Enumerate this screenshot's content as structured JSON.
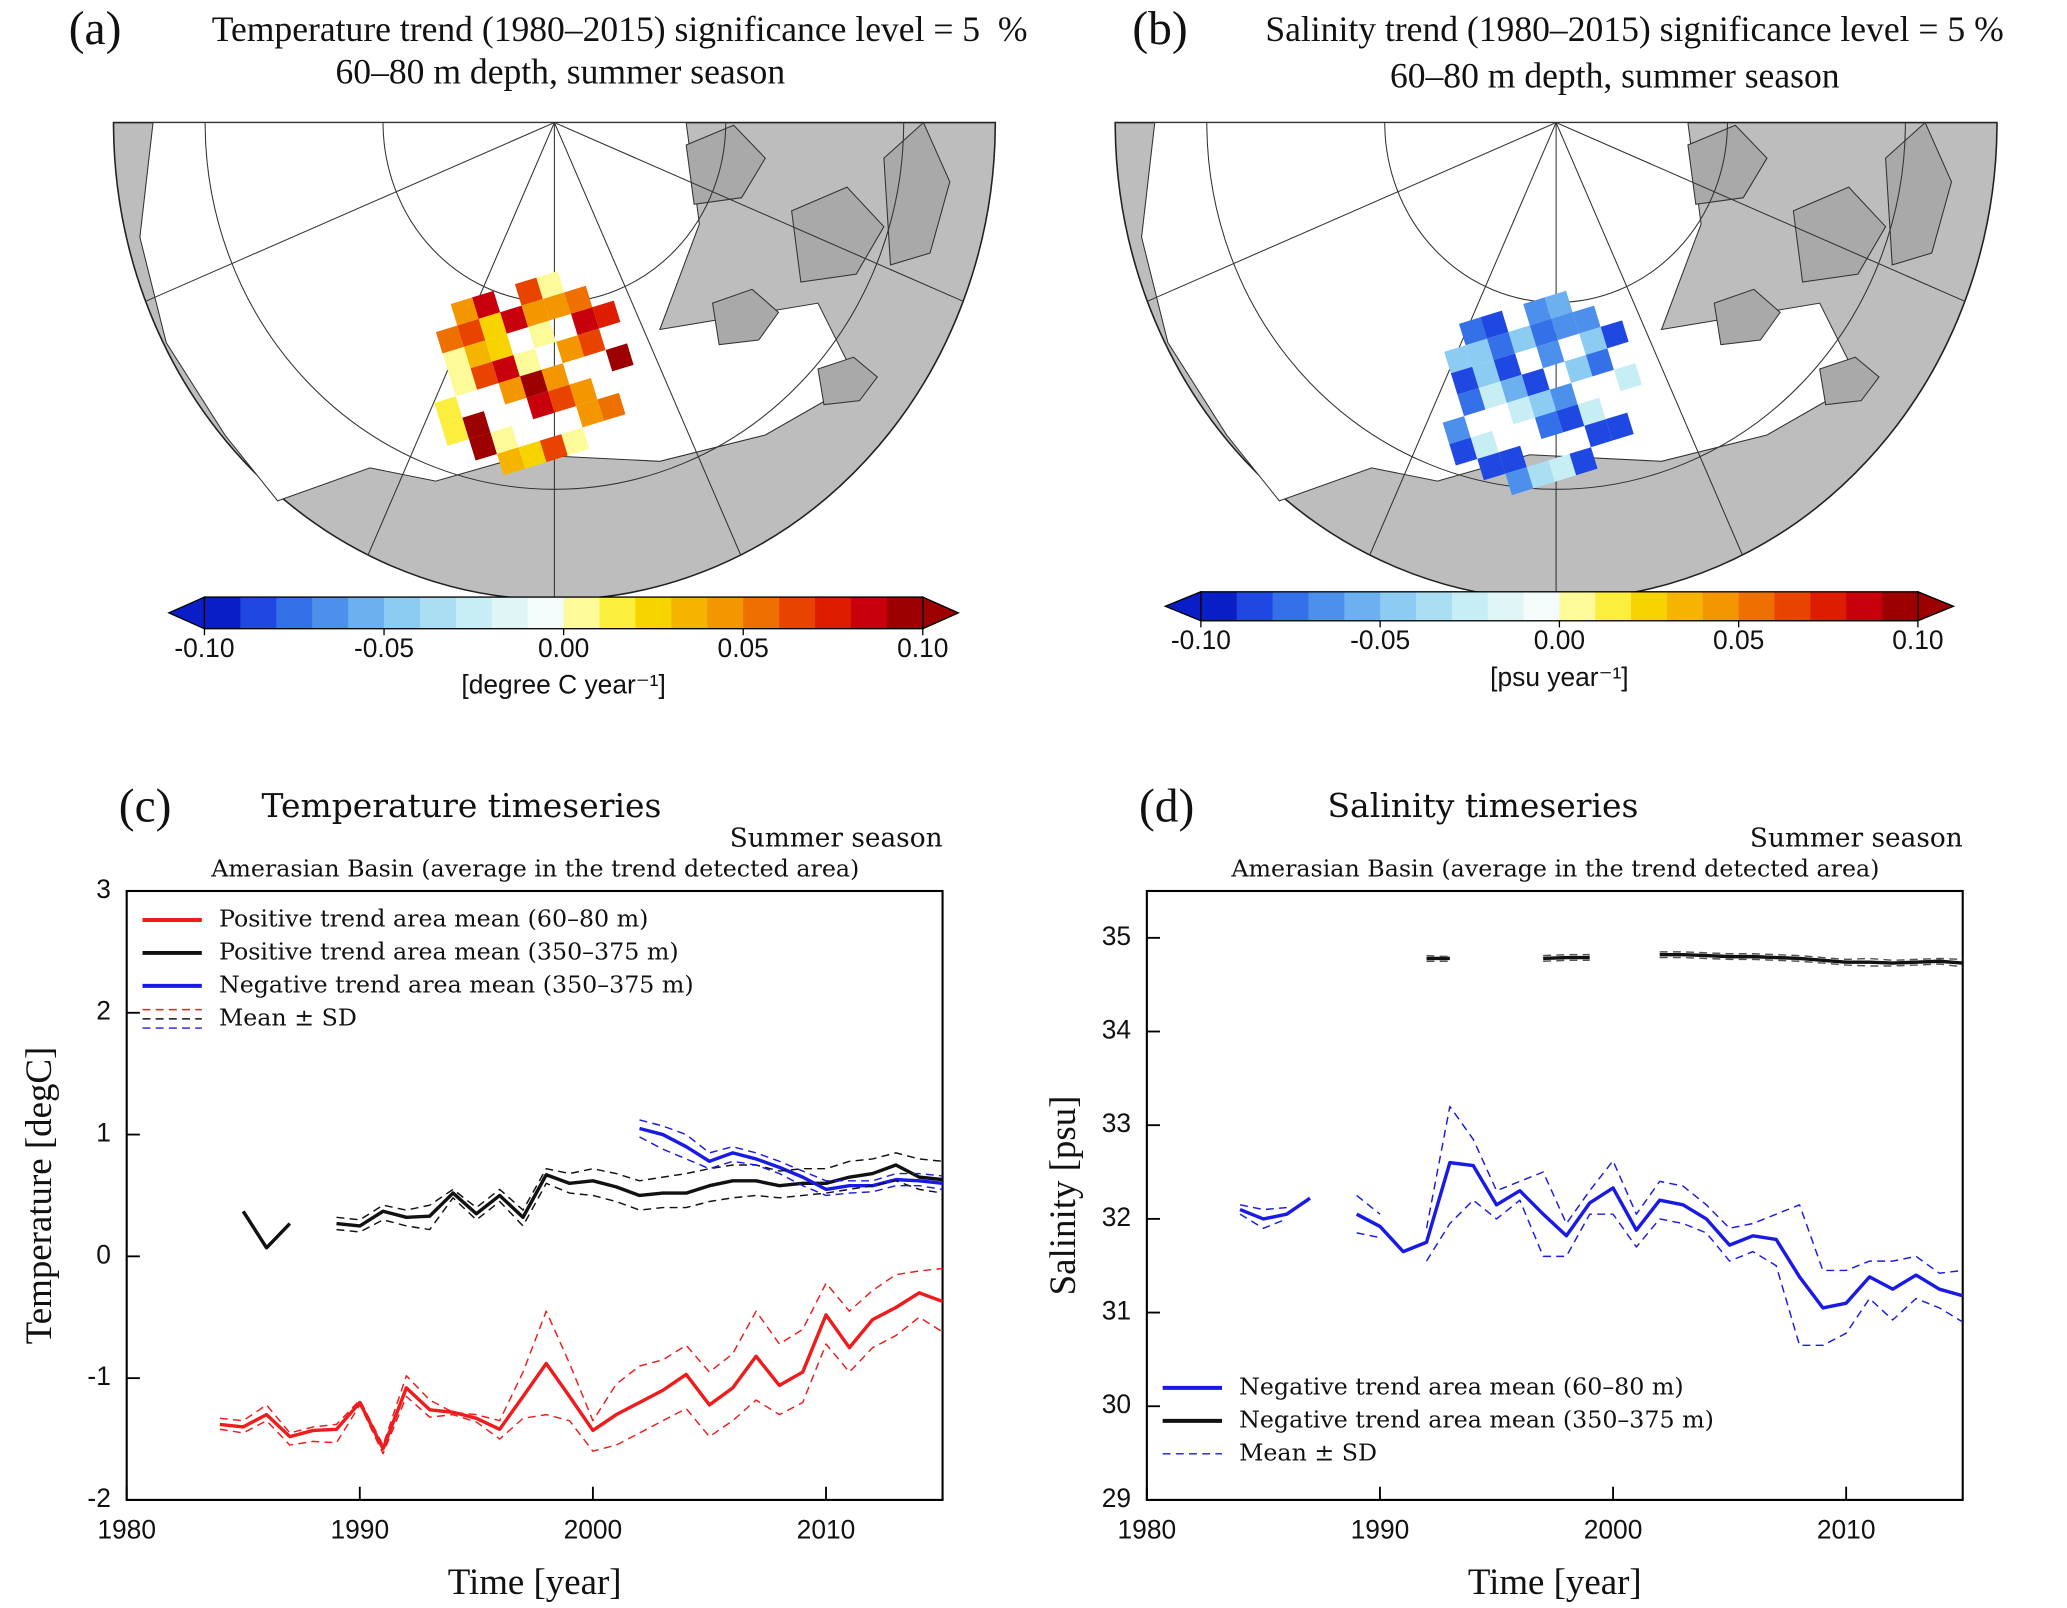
{
  "chart_data": [
    {
      "type": "map",
      "panel_label": "(a)",
      "title": "Temperature trend (1980–2015) significance level = 5  %",
      "subtitle": "60–80 m depth, summer season",
      "colorbar": {
        "colors": [
          "#0a1ec8",
          "#1f48e2",
          "#3470e8",
          "#4d90ec",
          "#6cb0f0",
          "#8ccbf2",
          "#a9def3",
          "#c7edf5",
          "#e0f6f6",
          "#f3fbfb",
          "#fdfa9a",
          "#fbee3c",
          "#f7d400",
          "#f5b400",
          "#f39600",
          "#ee7000",
          "#e84400",
          "#de1c00",
          "#c8000c",
          "#9c0000"
        ],
        "lim": [
          -0.1,
          0.1
        ],
        "ticks": [
          {
            "value": -0.1,
            "label": "-0.10"
          },
          {
            "value": -0.05,
            "label": "-0.05"
          },
          {
            "value": 0,
            "label": "0.00"
          },
          {
            "value": 0.05,
            "label": "0.05"
          },
          {
            "value": 0.1,
            "label": "0.10"
          }
        ],
        "label": "[degree C year⁻¹]"
      }
    },
    {
      "type": "map",
      "panel_label": "(b)",
      "title": "Salinity trend (1980–2015) significance level = 5 %",
      "subtitle": "60–80 m depth, summer season",
      "colorbar": {
        "colors": [
          "#0a1ec8",
          "#1f48e2",
          "#3470e8",
          "#4d90ec",
          "#6cb0f0",
          "#8ccbf2",
          "#a9def3",
          "#c7edf5",
          "#e0f6f6",
          "#f3fbfb",
          "#fdfa9a",
          "#fbee3c",
          "#f7d400",
          "#f5b400",
          "#f39600",
          "#ee7000",
          "#e84400",
          "#de1c00",
          "#c8000c",
          "#9c0000"
        ],
        "lim": [
          -0.1,
          0.1
        ],
        "ticks": [
          {
            "value": -0.1,
            "label": "-0.10"
          },
          {
            "value": -0.05,
            "label": "-0.05"
          },
          {
            "value": 0,
            "label": "0.00"
          },
          {
            "value": 0.05,
            "label": "0.05"
          },
          {
            "value": 0.1,
            "label": "0.10"
          }
        ],
        "label": "[psu year⁻¹]"
      }
    },
    {
      "type": "line",
      "panel_label": "(c)",
      "title": "Temperature timeseries",
      "season": "Summer season",
      "subtitle": "Amerasian Basin (average in the trend detected area)",
      "xlabel": "Time [year]",
      "ylabel": "Temperature [degC]",
      "xlim": [
        1980,
        2015
      ],
      "xticks": [
        1980,
        1990,
        2000,
        2010
      ],
      "ylim": [
        -2,
        3
      ],
      "yticks": [
        -2,
        -1,
        0,
        1,
        2,
        3
      ],
      "legend": "upper left",
      "x": [
        1984,
        1985,
        1986,
        1987,
        1988,
        1989,
        1990,
        1991,
        1992,
        1993,
        1994,
        1995,
        1996,
        1997,
        1998,
        1999,
        2000,
        2001,
        2002,
        2003,
        2004,
        2005,
        2006,
        2007,
        2008,
        2009,
        2010,
        2011,
        2012,
        2013,
        2014,
        2015
      ],
      "series": [
        {
          "name": "Positive trend area mean (60–80 m)",
          "color": "#ee1c1c",
          "dashed": false,
          "values": [
            -1.38,
            -1.4,
            -1.3,
            -1.48,
            -1.43,
            -1.42,
            -1.2,
            -1.58,
            -1.08,
            -1.26,
            -1.28,
            -1.33,
            -1.42,
            -1.15,
            -0.88,
            -1.15,
            -1.43,
            -1.3,
            -1.2,
            -1.1,
            -0.97,
            -1.22,
            -1.08,
            -0.82,
            -1.06,
            -0.95,
            -0.48,
            -0.75,
            -0.52,
            -0.42,
            -0.3,
            -0.37
          ]
        },
        {
          "name": "Positive trend area mean (350–375 m)",
          "color": "#111111",
          "dashed": false,
          "values": [
            null,
            0.37,
            0.07,
            0.27,
            null,
            0.27,
            0.25,
            0.37,
            0.32,
            0.33,
            0.52,
            0.35,
            0.5,
            0.32,
            0.67,
            0.6,
            0.62,
            0.57,
            0.5,
            0.52,
            0.52,
            0.58,
            0.62,
            0.62,
            0.58,
            0.6,
            0.6,
            0.65,
            0.68,
            0.75,
            0.65,
            0.63
          ]
        },
        {
          "name": "Negative trend area mean (350–375 m)",
          "color": "#1a1ae6",
          "dashed": false,
          "values": [
            null,
            null,
            null,
            null,
            null,
            null,
            null,
            null,
            null,
            null,
            null,
            null,
            null,
            null,
            null,
            null,
            null,
            null,
            1.05,
            1.0,
            0.9,
            0.78,
            0.85,
            0.8,
            0.73,
            0.65,
            0.55,
            0.58,
            0.58,
            0.63,
            0.62,
            0.6
          ]
        },
        {
          "color": "#ee1c1c",
          "dashed": true,
          "values": [
            -1.33,
            -1.35,
            -1.22,
            -1.45,
            -1.4,
            -1.38,
            -1.18,
            -1.55,
            -0.98,
            -1.18,
            -1.28,
            -1.3,
            -1.35,
            -0.95,
            -0.45,
            -0.88,
            -1.35,
            -1.05,
            -0.9,
            -0.85,
            -0.73,
            -0.95,
            -0.8,
            -0.45,
            -0.72,
            -0.6,
            -0.22,
            -0.45,
            -0.28,
            -0.15,
            -0.12,
            -0.1
          ]
        },
        {
          "color": "#ee1c1c",
          "dashed": true,
          "values": [
            -1.42,
            -1.45,
            -1.35,
            -1.55,
            -1.52,
            -1.53,
            -1.22,
            -1.62,
            -1.15,
            -1.32,
            -1.3,
            -1.36,
            -1.5,
            -1.33,
            -1.3,
            -1.35,
            -1.6,
            -1.55,
            -1.45,
            -1.35,
            -1.25,
            -1.48,
            -1.35,
            -1.18,
            -1.3,
            -1.2,
            -0.72,
            -0.95,
            -0.75,
            -0.65,
            -0.5,
            -0.62
          ]
        },
        {
          "color": "#111111",
          "dashed": true,
          "values": [
            null,
            null,
            null,
            null,
            null,
            0.32,
            0.3,
            0.42,
            0.38,
            0.42,
            0.55,
            0.4,
            0.55,
            0.38,
            0.72,
            0.68,
            0.72,
            0.68,
            0.62,
            0.65,
            0.68,
            0.72,
            0.75,
            0.75,
            0.7,
            0.72,
            0.72,
            0.78,
            0.8,
            0.85,
            0.8,
            0.78
          ]
        },
        {
          "color": "#111111",
          "dashed": true,
          "values": [
            null,
            null,
            null,
            null,
            null,
            0.22,
            0.2,
            0.3,
            0.25,
            0.22,
            0.48,
            0.3,
            0.45,
            0.25,
            0.6,
            0.52,
            0.5,
            0.45,
            0.38,
            0.4,
            0.4,
            0.45,
            0.48,
            0.5,
            0.48,
            0.5,
            0.52,
            0.55,
            0.58,
            0.62,
            0.55,
            0.52
          ]
        },
        {
          "color": "#1a1ae6",
          "dashed": true,
          "values": [
            null,
            null,
            null,
            null,
            null,
            null,
            null,
            null,
            null,
            null,
            null,
            null,
            null,
            null,
            null,
            null,
            null,
            null,
            1.12,
            1.07,
            1.0,
            0.85,
            0.9,
            0.85,
            0.78,
            0.7,
            0.62,
            0.62,
            0.62,
            0.68,
            0.68,
            0.66
          ]
        },
        {
          "color": "#1a1ae6",
          "dashed": true,
          "values": [
            null,
            null,
            null,
            null,
            null,
            null,
            null,
            null,
            null,
            null,
            null,
            null,
            null,
            null,
            null,
            null,
            null,
            null,
            0.98,
            0.88,
            0.8,
            0.72,
            0.78,
            0.75,
            0.68,
            0.58,
            0.5,
            0.52,
            0.53,
            0.58,
            0.58,
            0.55
          ]
        }
      ],
      "sd_legend": {
        "label": "Mean ± SD",
        "colors": [
          "#ee1c1c",
          "#111111",
          "#1a1ae6"
        ]
      }
    },
    {
      "type": "line",
      "panel_label": "(d)",
      "title": "Salinity timeseries",
      "season": "Summer season",
      "subtitle": "Amerasian Basin (average in the trend detected area)",
      "xlabel": "Time [year]",
      "ylabel": "Salinity [psu]",
      "xlim": [
        1980,
        2015
      ],
      "xticks": [
        1980,
        1990,
        2000,
        2010
      ],
      "ylim": [
        29,
        35.5
      ],
      "yticks": [
        29,
        30,
        31,
        32,
        33,
        34,
        35
      ],
      "legend": "lower left",
      "x": [
        1984,
        1985,
        1986,
        1987,
        1988,
        1989,
        1990,
        1991,
        1992,
        1993,
        1994,
        1995,
        1996,
        1997,
        1998,
        1999,
        2000,
        2001,
        2002,
        2003,
        2004,
        2005,
        2006,
        2007,
        2008,
        2009,
        2010,
        2011,
        2012,
        2013,
        2014,
        2015
      ],
      "series": [
        {
          "name": "Negative trend area mean (60–80 m)",
          "color": "#1a1ae6",
          "dashed": false,
          "values": [
            32.1,
            32.0,
            32.05,
            32.22,
            null,
            32.05,
            31.92,
            31.65,
            31.75,
            32.6,
            32.57,
            32.15,
            32.3,
            32.05,
            31.82,
            32.17,
            32.33,
            31.88,
            32.2,
            32.15,
            32.0,
            31.72,
            31.82,
            31.78,
            31.38,
            31.05,
            31.1,
            31.38,
            31.25,
            31.4,
            31.25,
            31.18
          ]
        },
        {
          "name": "Negative trend area mean (350–375 m)",
          "color": "#111111",
          "dashed": false,
          "values": [
            null,
            null,
            null,
            null,
            null,
            null,
            null,
            null,
            34.78,
            34.78,
            null,
            null,
            null,
            34.78,
            34.79,
            34.79,
            null,
            null,
            34.82,
            34.82,
            34.81,
            34.8,
            34.8,
            34.79,
            34.78,
            34.76,
            34.74,
            34.74,
            34.73,
            34.74,
            34.75,
            34.73
          ]
        },
        {
          "color": "#1a1ae6",
          "dashed": true,
          "values": [
            32.15,
            32.1,
            32.12,
            null,
            null,
            32.25,
            32.05,
            null,
            31.9,
            33.2,
            32.85,
            32.3,
            32.4,
            32.5,
            31.95,
            32.3,
            32.62,
            32.05,
            32.4,
            32.35,
            32.15,
            31.9,
            31.95,
            32.05,
            32.15,
            31.45,
            31.45,
            31.55,
            31.55,
            31.6,
            31.42,
            31.45
          ]
        },
        {
          "color": "#1a1ae6",
          "dashed": true,
          "values": [
            32.05,
            31.9,
            32.0,
            null,
            null,
            31.85,
            31.8,
            null,
            31.55,
            31.95,
            32.2,
            32.0,
            32.2,
            31.6,
            31.6,
            32.05,
            32.05,
            31.7,
            32.0,
            31.95,
            31.85,
            31.55,
            31.65,
            31.5,
            30.65,
            30.65,
            30.78,
            31.15,
            30.92,
            31.15,
            31.05,
            30.9
          ]
        },
        {
          "color": "#555555",
          "dashed": true,
          "values": [
            null,
            null,
            null,
            null,
            null,
            null,
            null,
            null,
            34.81,
            34.8,
            null,
            null,
            null,
            34.81,
            34.82,
            34.82,
            null,
            null,
            34.85,
            34.85,
            34.84,
            34.83,
            34.83,
            34.82,
            34.81,
            34.79,
            34.77,
            34.78,
            34.76,
            34.77,
            34.78,
            34.77
          ]
        },
        {
          "color": "#555555",
          "dashed": true,
          "values": [
            null,
            null,
            null,
            null,
            null,
            null,
            null,
            null,
            34.75,
            34.75,
            null,
            null,
            null,
            34.75,
            34.76,
            34.76,
            null,
            null,
            34.79,
            34.79,
            34.78,
            34.77,
            34.77,
            34.76,
            34.75,
            34.73,
            34.71,
            34.7,
            34.7,
            34.71,
            34.72,
            34.69
          ]
        }
      ],
      "sd_legend": {
        "label": "Mean ± SD",
        "colors": [
          "#1a1ae6"
        ]
      }
    }
  ]
}
